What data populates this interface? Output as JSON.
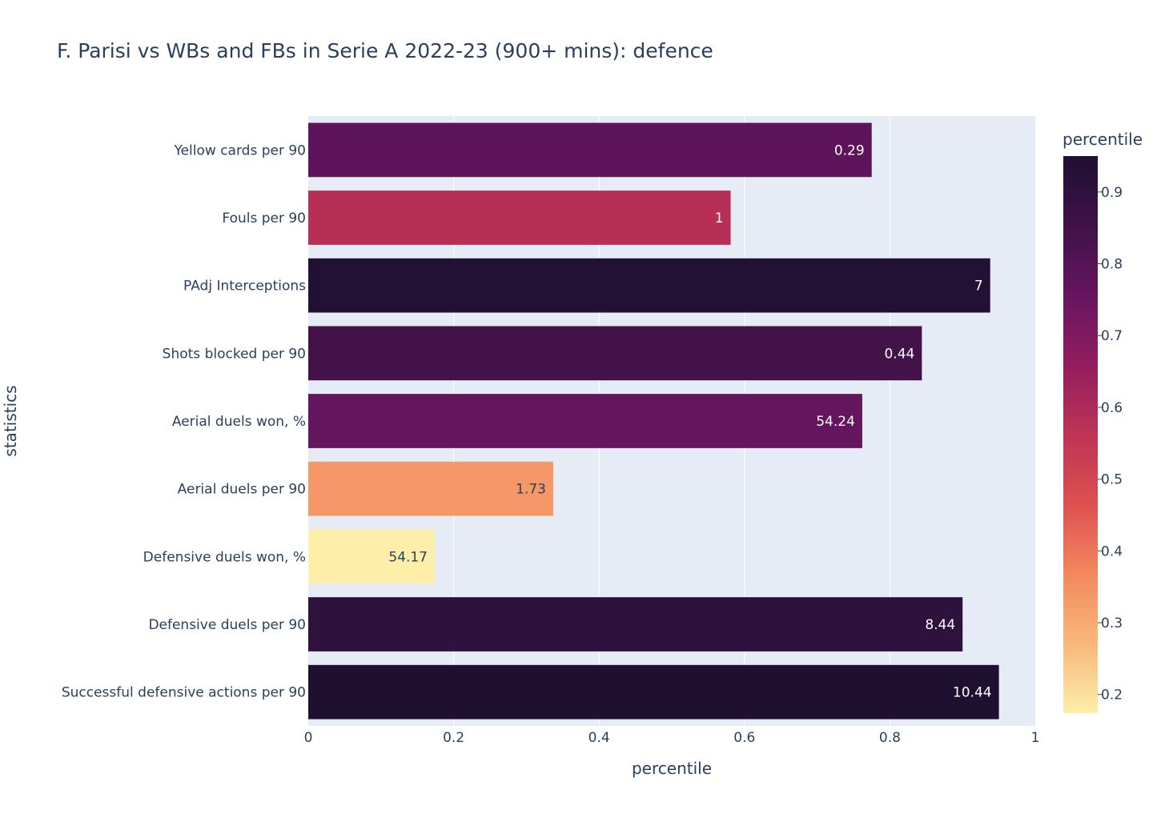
{
  "chart_data": {
    "type": "bar",
    "orientation": "horizontal",
    "title": "F. Parisi vs WBs and FBs in Serie A 2022-23 (900+ mins): defence",
    "xlabel": "percentile",
    "ylabel": "statistics",
    "xlim": [
      0,
      1
    ],
    "x_ticks": [
      "0",
      "0.2",
      "0.4",
      "0.6",
      "0.8",
      "1"
    ],
    "grid": true,
    "categories": [
      "Yellow cards per 90",
      "Fouls per 90",
      "PAdj Interceptions",
      "Shots blocked per 90",
      "Aerial duels won, %",
      "Aerial duels per 90",
      "Defensive duels won, %",
      "Defensive duels per 90",
      "Successful defensive actions per 90"
    ],
    "values": [
      0.775,
      0.581,
      0.938,
      0.844,
      0.762,
      0.337,
      0.174,
      0.9,
      0.95
    ],
    "text_labels": [
      "0.29",
      "1",
      "7",
      "0.44",
      "54.24",
      "1.73",
      "54.17",
      "8.44",
      "10.44"
    ],
    "colorbar": {
      "title": "percentile",
      "range": [
        0.174,
        0.95
      ],
      "ticks": [
        "0.2",
        "0.3",
        "0.4",
        "0.5",
        "0.6",
        "0.7",
        "0.8",
        "0.9"
      ],
      "colorscale": [
        "#fdeeaa",
        "#f9b87a",
        "#f3885e",
        "#de5050",
        "#be3455",
        "#921d5f",
        "#661560",
        "#3f1247",
        "#1f1032"
      ]
    }
  },
  "colors": {
    "plot_background": "#e5ecf6",
    "grid": "#ffffff",
    "text": "#2a3f5f"
  }
}
